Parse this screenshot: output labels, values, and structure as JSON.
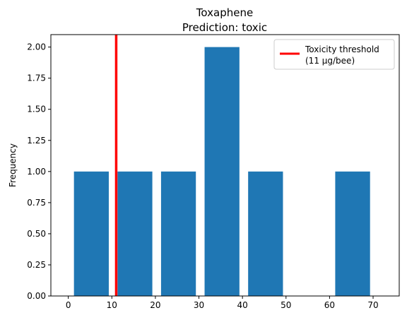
{
  "chart_data": {
    "type": "bar",
    "title": "Toxaphene",
    "subtitle": "Prediction: toxic",
    "xlabel": "",
    "ylabel": "Frequency",
    "xlim": [
      -4,
      76
    ],
    "ylim": [
      0,
      2.1
    ],
    "x_ticks": [
      0,
      10,
      20,
      30,
      40,
      50,
      60,
      70
    ],
    "x_tick_labels": [
      "0",
      "10",
      "20",
      "30",
      "40",
      "50",
      "60",
      "70"
    ],
    "y_ticks": [
      0,
      0.25,
      0.5,
      0.75,
      1.0,
      1.25,
      1.5,
      1.75,
      2.0
    ],
    "y_tick_labels": [
      "0.00",
      "0.25",
      "0.50",
      "0.75",
      "1.00",
      "1.25",
      "1.50",
      "1.75",
      "2.00"
    ],
    "bins": [
      {
        "start": 1.3,
        "end": 9.3,
        "value": 1
      },
      {
        "start": 11.3,
        "end": 19.3,
        "value": 1
      },
      {
        "start": 21.3,
        "end": 29.3,
        "value": 1
      },
      {
        "start": 31.3,
        "end": 39.3,
        "value": 2
      },
      {
        "start": 41.3,
        "end": 49.3,
        "value": 1
      },
      {
        "start": 51.3,
        "end": 59.3,
        "value": 0
      },
      {
        "start": 61.3,
        "end": 69.3,
        "value": 1
      }
    ],
    "bar_color": "#1f77b4",
    "threshold": {
      "x": 11,
      "color": "#ff0000",
      "legend_line1": "Toxicity threshold",
      "legend_line2": "(11 µg/bee)"
    },
    "legend_position": "top-right",
    "grid": false
  }
}
